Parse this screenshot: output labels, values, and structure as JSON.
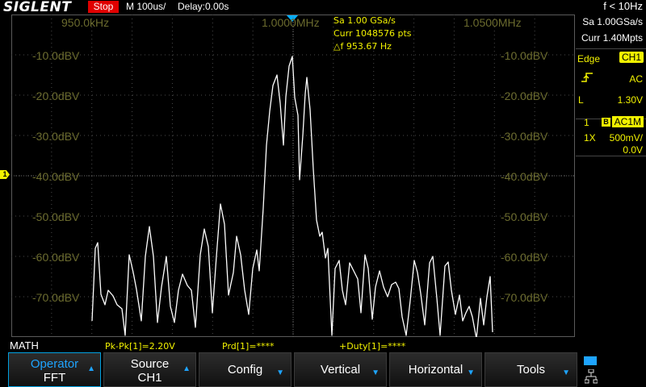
{
  "header": {
    "brand": "SIGLENT",
    "run_status": "Stop",
    "timebase": "M 100us/",
    "delay": "Delay:0.00s",
    "freq_counter": "f < 10Hz"
  },
  "grid": {
    "freq_labels": [
      "950.0kHz",
      "1.0000MHz",
      "1.0500MHz"
    ],
    "db_labels": [
      "-10.0dBV",
      "-20.0dBV",
      "-30.0dBV",
      "-40.0dBV",
      "-50.0dBV",
      "-60.0dBV",
      "-70.0dBV"
    ],
    "measurements": {
      "sample_rate": "Sa 1.00 GSa/s",
      "curr": "Curr 1048576 pts",
      "delta_f": "△f 953.67 Hz"
    },
    "channel_marker": "1",
    "trace_color": "#ffffff",
    "label_color": "#6b6b2e"
  },
  "right_panel": {
    "sample_rate": "Sa 1.00GSa/s",
    "memory": "Curr 1.40Mpts",
    "trigger": {
      "type": "Edge",
      "source": "CH1",
      "slope_icon": "rising-edge-icon",
      "coupling": "AC",
      "level_label": "L",
      "level": "1.30V"
    },
    "channel": {
      "number": "1",
      "bw_icon": "B",
      "coupling": "AC1M",
      "probe": "1X",
      "scale": "500mV/",
      "offset": "0.0V"
    }
  },
  "bottom": {
    "math_label": "MATH",
    "meas": [
      "Pk-Pk[1]=2.20V",
      "Prd[1]=****",
      "+Duty[1]=****"
    ]
  },
  "softkeys": [
    {
      "line1": "Operator",
      "line2": "FFT"
    },
    {
      "line1": "Source",
      "line2": "CH1"
    },
    {
      "label": "Config"
    },
    {
      "label": "Vertical"
    },
    {
      "label": "Horizontal"
    },
    {
      "label": "Tools"
    }
  ],
  "colors": {
    "accent": "#1ea4ff",
    "channel1": "#f2f200",
    "stop": "#e00000"
  }
}
